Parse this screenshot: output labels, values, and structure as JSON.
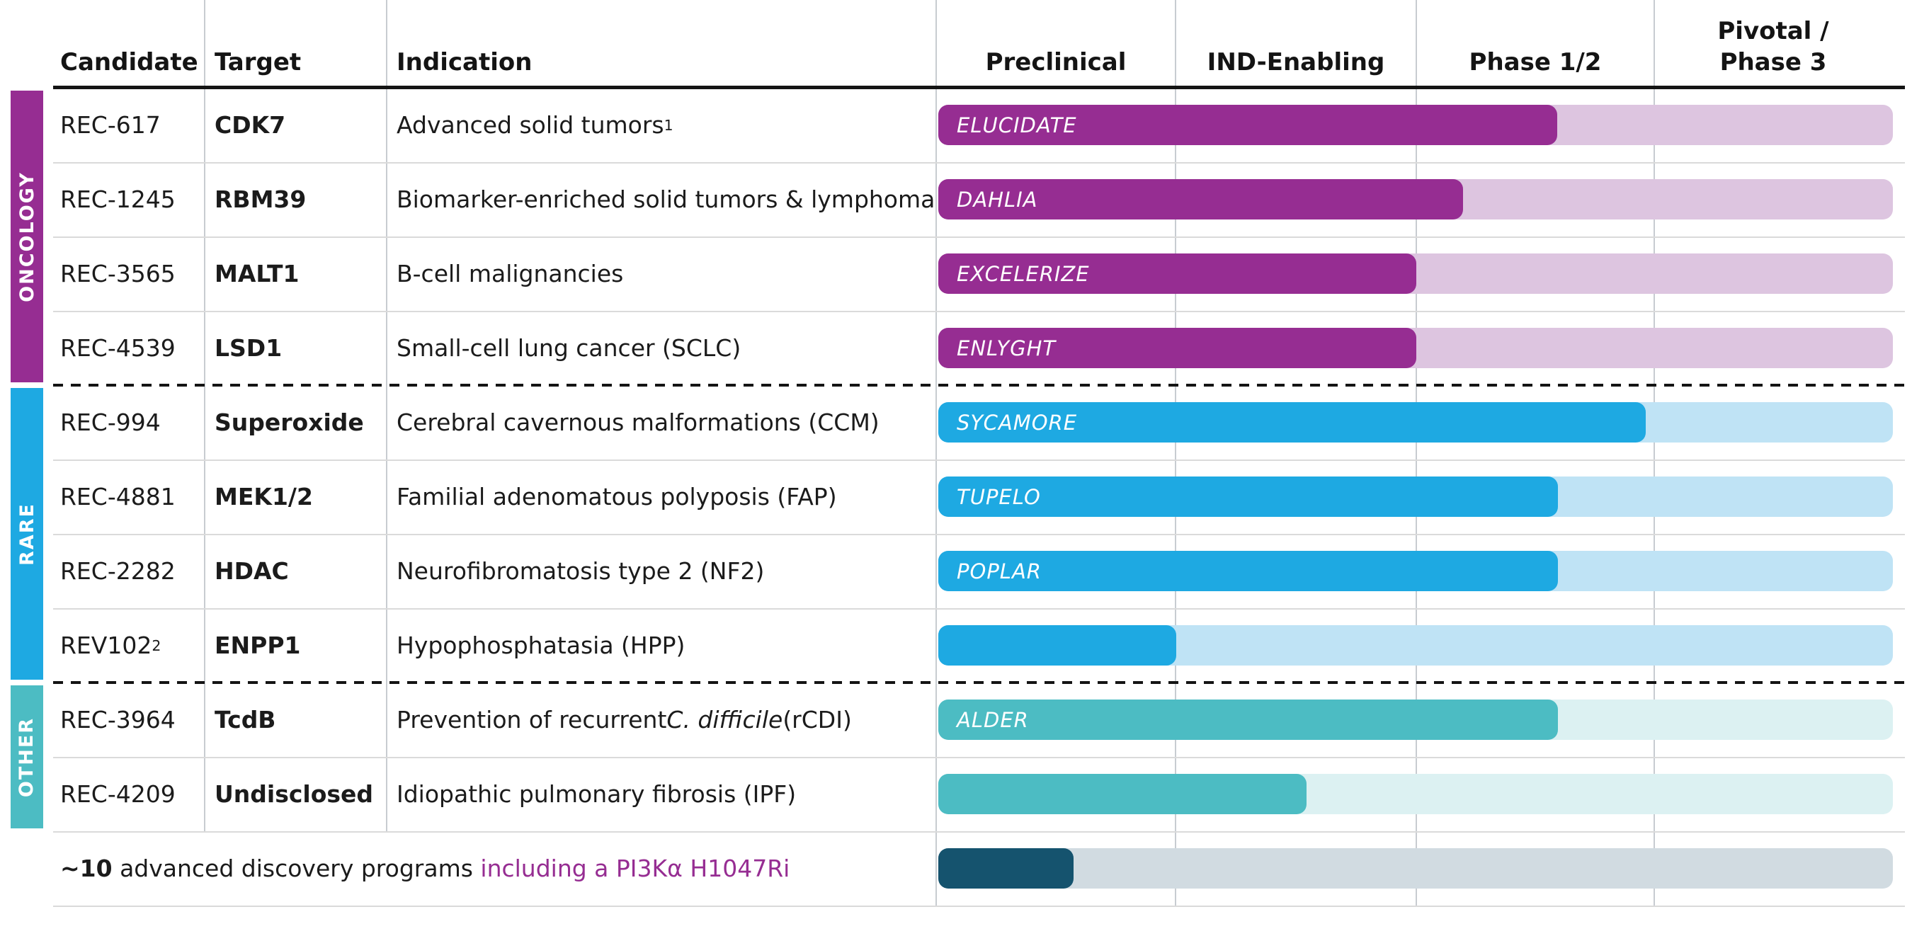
{
  "header": {
    "columns": [
      "Candidate",
      "Target",
      "Indication"
    ],
    "phases": [
      "Preclinical",
      "IND-Enabling",
      "Phase 1/2",
      "Pivotal /\nPhase 3"
    ]
  },
  "sections": [
    {
      "label": "ONCOLOGY",
      "accent_color": "#962D92",
      "bar_color": "#962D92",
      "track_color": "#DDC5E0",
      "rows": [
        {
          "candidate": "REC-617",
          "candidate_sup": "",
          "target": "CDK7",
          "indication": [
            {
              "text": "Advanced solid tumors"
            },
            {
              "text": "1",
              "sup": true
            }
          ],
          "trial": "ELUCIDATE",
          "progress_pct": 64.8
        },
        {
          "candidate": "REC-1245",
          "candidate_sup": "",
          "target": "RBM39",
          "indication": [
            {
              "text": "Biomarker-enriched solid tumors & lymphoma"
            }
          ],
          "trial": "DAHLIA",
          "progress_pct": 55.0
        },
        {
          "candidate": "REC-3565",
          "candidate_sup": "",
          "target": "MALT1",
          "indication": [
            {
              "text": "B-cell malignancies"
            }
          ],
          "trial": "EXCELERIZE",
          "progress_pct": 50.1
        },
        {
          "candidate": "REC-4539",
          "candidate_sup": "",
          "target": "LSD1",
          "indication": [
            {
              "text": "Small-cell lung cancer (SCLC)"
            }
          ],
          "trial": "ENLYGHT",
          "progress_pct": 50.1
        }
      ]
    },
    {
      "label": "RARE",
      "accent_color": "#1EA9E2",
      "bar_color": "#1EA9E2",
      "track_color": "#BFE3F5",
      "rows": [
        {
          "candidate": "REC-994",
          "candidate_sup": "",
          "target": "Superoxide",
          "indication": [
            {
              "text": "Cerebral cavernous malformations (CCM)"
            }
          ],
          "trial": "SYCAMORE",
          "progress_pct": 74.1
        },
        {
          "candidate": "REC-4881",
          "candidate_sup": "",
          "target": "MEK1/2",
          "indication": [
            {
              "text": "Familial adenomatous polyposis (FAP)"
            }
          ],
          "trial": "TUPELO",
          "progress_pct": 64.9
        },
        {
          "candidate": "REC-2282",
          "candidate_sup": "",
          "target": "HDAC",
          "indication": [
            {
              "text": "Neurofibromatosis type 2 (NF2)"
            }
          ],
          "trial": "POPLAR",
          "progress_pct": 64.9
        },
        {
          "candidate": "REV102",
          "candidate_sup": "2",
          "target": "ENPP1",
          "indication": [
            {
              "text": "Hypophosphatasia (HPP)"
            }
          ],
          "trial": "",
          "progress_pct": 24.9
        }
      ]
    },
    {
      "label": "OTHER",
      "accent_color": "#4CBCC3",
      "bar_color": "#4CBCC3",
      "track_color": "#DCF1F2",
      "rows": [
        {
          "candidate": "REC-3964",
          "candidate_sup": "",
          "target": "TcdB",
          "indication": [
            {
              "text": "Prevention of recurrent "
            },
            {
              "text": "C. difficile",
              "italic": true
            },
            {
              "text": " (rCDI)"
            }
          ],
          "trial": "ALDER",
          "progress_pct": 64.9
        },
        {
          "candidate": "REC-4209",
          "candidate_sup": "",
          "target": "Undisclosed",
          "indication": [
            {
              "text": "Idiopathic pulmonary fibrosis (IPF)"
            }
          ],
          "trial": "",
          "progress_pct": 38.6
        }
      ]
    }
  ],
  "discovery_row": {
    "lead_bold": "~10",
    "body": " advanced discovery programs ",
    "highlight": "including a PI3Kα H1047Ri",
    "highlight_color": "#962D92",
    "bar_color": "#15536E",
    "track_color": "#D1DBE1",
    "progress_pct": 14.2
  },
  "chart_data": {
    "type": "bar",
    "orientation": "horizontal",
    "title": "Clinical pipeline by development phase",
    "x_axis_phases": [
      "Preclinical",
      "IND-Enabling",
      "Phase 1/2",
      "Pivotal / Phase 3"
    ],
    "xlim": [
      0,
      4
    ],
    "grid": true,
    "categories": [
      "REC-617",
      "REC-1245",
      "REC-3565",
      "REC-4539",
      "REC-994",
      "REC-4881",
      "REC-2282",
      "REV102",
      "REC-3964",
      "REC-4209",
      "~10 advanced discovery programs"
    ],
    "groups": [
      "ONCOLOGY",
      "ONCOLOGY",
      "ONCOLOGY",
      "ONCOLOGY",
      "RARE",
      "RARE",
      "RARE",
      "RARE",
      "OTHER",
      "OTHER",
      "DISCOVERY"
    ],
    "values_phase_units": [
      2.6,
      2.2,
      2.0,
      2.0,
      3.0,
      2.6,
      2.6,
      1.0,
      2.6,
      1.55,
      0.57
    ],
    "bar_labels": [
      "ELUCIDATE",
      "DAHLIA",
      "EXCELERIZE",
      "ENLYGHT",
      "SYCAMORE",
      "TUPELO",
      "POPLAR",
      "",
      "ALDER",
      "",
      ""
    ],
    "bar_colors": [
      "#962D92",
      "#962D92",
      "#962D92",
      "#962D92",
      "#1EA9E2",
      "#1EA9E2",
      "#1EA9E2",
      "#1EA9E2",
      "#4CBCC3",
      "#4CBCC3",
      "#15536E"
    ]
  }
}
